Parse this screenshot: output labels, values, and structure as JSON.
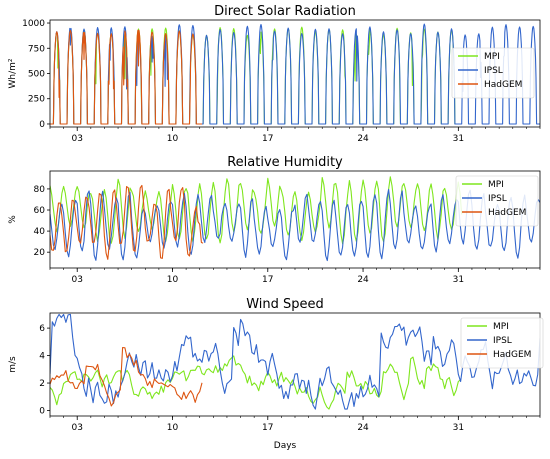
{
  "colors": {
    "MPI": "#7fe61e",
    "IPSL": "#3366cc",
    "HadGEM": "#dd5511"
  },
  "chart_data": [
    {
      "type": "line",
      "title": "Direct Solar Radiation",
      "ylabel": "Wh/m²",
      "xlabel": "",
      "xlim": [
        1,
        37
      ],
      "ylim": [
        -30,
        1030
      ],
      "yticks": [
        0,
        250,
        500,
        750,
        1000
      ],
      "xticks": [
        3,
        10,
        17,
        24,
        31
      ],
      "xtick_labels": [
        "03",
        "10",
        "17",
        "24",
        "31"
      ],
      "legend_position": "right",
      "series": [
        {
          "name": "MPI",
          "days": [
            1,
            31
          ],
          "shape": "diurnal",
          "min": 0,
          "max": 960,
          "variation": 0.06
        },
        {
          "name": "IPSL",
          "days": [
            1,
            37
          ],
          "shape": "diurnal",
          "min": 0,
          "max": 990,
          "variation": 0.08
        },
        {
          "name": "HadGEM",
          "days": [
            1,
            12.2
          ],
          "shape": "diurnal",
          "min": 0,
          "max": 960,
          "variation": 0.05
        }
      ]
    },
    {
      "type": "line",
      "title": "Relative Humidity",
      "ylabel": "%",
      "xlabel": "",
      "xlim": [
        1,
        37
      ],
      "ylim": [
        5,
        97
      ],
      "yticks": [
        20,
        40,
        60,
        80
      ],
      "xticks": [
        3,
        10,
        17,
        24,
        31
      ],
      "xtick_labels": [
        "03",
        "10",
        "17",
        "24",
        "31"
      ],
      "legend_position": "right",
      "series": [
        {
          "name": "MPI",
          "days": [
            1,
            31.3
          ],
          "shape": "oscillate",
          "min": 28,
          "max": 92,
          "variation": 0.25
        },
        {
          "name": "IPSL",
          "days": [
            1,
            37
          ],
          "shape": "oscillate",
          "min": 12,
          "max": 80,
          "variation": 0.3
        },
        {
          "name": "HadGEM",
          "days": [
            1,
            12.3
          ],
          "shape": "oscillate",
          "min": 10,
          "max": 85,
          "variation": 0.3
        }
      ]
    },
    {
      "type": "line",
      "title": "Wind Speed",
      "ylabel": "m/s",
      "xlabel": "Days",
      "xlim": [
        1,
        37
      ],
      "ylim": [
        -0.4,
        7.1
      ],
      "yticks": [
        0,
        2,
        4,
        6
      ],
      "xticks": [
        3,
        10,
        17,
        24,
        31
      ],
      "xtick_labels": [
        "03",
        "10",
        "17",
        "24",
        "31"
      ],
      "legend_position": "right",
      "series": [
        {
          "name": "MPI",
          "days": [
            1,
            31.3
          ],
          "shape": "noisy",
          "min": 0.1,
          "max": 4.5,
          "variation": 0.5
        },
        {
          "name": "IPSL",
          "days": [
            1,
            37
          ],
          "shape": "noisy",
          "min": 0.1,
          "max": 7.0,
          "variation": 0.55
        },
        {
          "name": "HadGEM",
          "days": [
            1,
            12.3
          ],
          "shape": "noisy",
          "min": 0.3,
          "max": 4.9,
          "variation": 0.5
        }
      ]
    }
  ]
}
